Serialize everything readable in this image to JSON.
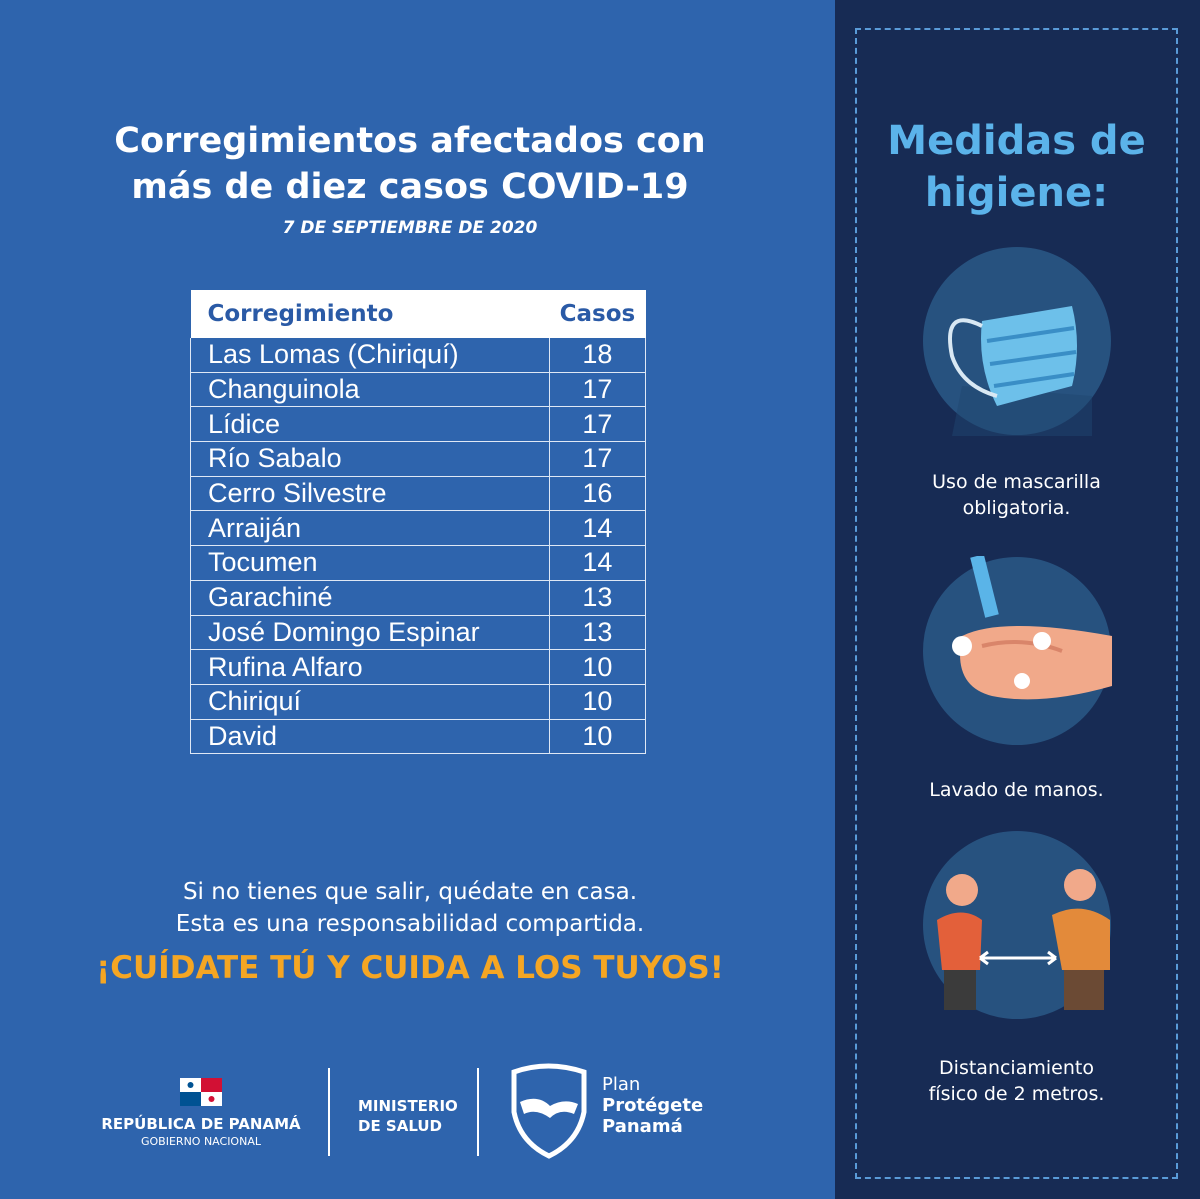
{
  "header": {
    "title": [
      "Corregimientos afectados con",
      "más de diez casos COVID-19"
    ],
    "date": "7  DE SEPTIEMBRE DE 2020"
  },
  "table": {
    "columns": [
      "Corregimiento",
      "Casos"
    ],
    "rows": [
      [
        "Las Lomas (Chiriquí)",
        "18"
      ],
      [
        "Changuinola",
        "17"
      ],
      [
        "Lídice",
        "17"
      ],
      [
        "Río Sabalo",
        "17"
      ],
      [
        "Cerro Silvestre",
        "16"
      ],
      [
        "Arraiján",
        "14"
      ],
      [
        "Tocumen",
        "14"
      ],
      [
        "Garachiné",
        "13"
      ],
      [
        "José Domingo Espinar",
        "13"
      ],
      [
        "Rufina Alfaro",
        "10"
      ],
      [
        "Chiriquí",
        "10"
      ],
      [
        "David",
        "10"
      ]
    ]
  },
  "message": [
    "Si no tienes que salir, quédate en casa.",
    "Esta es una responsabilidad compartida."
  ],
  "slogan": "¡CUÍDATE TÚ Y CUIDA A LOS TUYOS!",
  "footer": {
    "republic": "REPÚBLICA DE PANAMÁ",
    "government": "GOBIERNO NACIONAL",
    "ministry": [
      "MINISTERIO",
      "DE SALUD"
    ],
    "plan": [
      "Plan",
      "Protégete",
      "Panamá"
    ]
  },
  "side": {
    "title": [
      "Medidas de",
      "higiene:"
    ],
    "items": [
      [
        "Uso de mascarilla",
        "obligatoria."
      ],
      [
        "Lavado de manos."
      ],
      [
        "Distanciamiento",
        "físico de 2 metros."
      ]
    ]
  }
}
